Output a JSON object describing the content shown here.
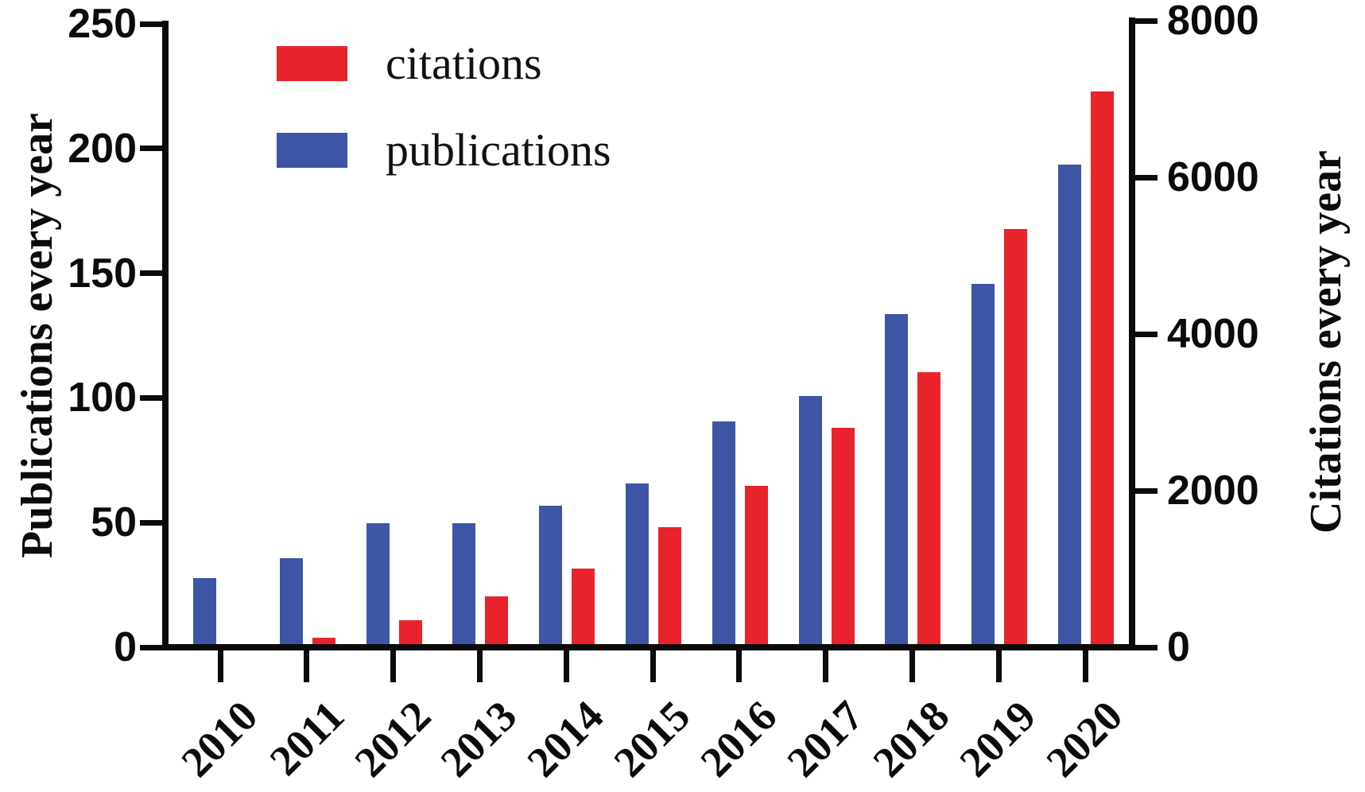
{
  "chart_data": {
    "type": "bar",
    "title": "",
    "categories": [
      "2010",
      "2011",
      "2012",
      "2013",
      "2014",
      "2015",
      "2016",
      "2017",
      "2018",
      "2019",
      "2020"
    ],
    "series": [
      {
        "name": "citations",
        "axis": "right",
        "color": "#e8232b",
        "values": [
          0,
          100,
          325,
          630,
          980,
          1510,
          2040,
          2780,
          3490,
          5320,
          7080
        ]
      },
      {
        "name": "publications",
        "axis": "left",
        "color": "#3e55a5",
        "values": [
          27,
          35,
          49,
          49,
          56,
          65,
          90,
          100,
          133,
          145,
          193
        ]
      }
    ],
    "ylabel_left": "Publications every year",
    "ylabel_right": "Citations every year",
    "yaxis_left": {
      "min": 0,
      "max": 250,
      "ticks": [
        0,
        50,
        100,
        150,
        200,
        250
      ]
    },
    "yaxis_right": {
      "min": 0,
      "max": 8000,
      "ticks": [
        0,
        2000,
        4000,
        6000,
        8000
      ]
    },
    "legend": {
      "position": "top-left-inside",
      "items": [
        "citations",
        "publications"
      ]
    },
    "grid": false,
    "axis_color": "#0b0b0b",
    "text_color": "#111111"
  }
}
